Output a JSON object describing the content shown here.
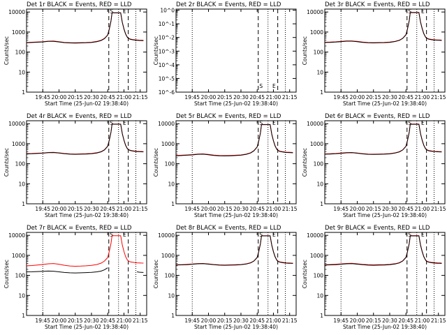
{
  "chart_data": {
    "type": "line",
    "layout": "3x3 grid of log-scale time-series panels",
    "x_tick_labels": [
      "19:45",
      "20:00",
      "20:15",
      "20:30",
      "20:45",
      "21:00",
      "21:15"
    ],
    "x_tick_minutes": [
      0,
      15,
      30,
      45,
      60,
      75,
      90
    ],
    "x_range_minutes": [
      -15,
      96
    ],
    "xlabel": "Start Time (25-Jun-02 19:38:40)",
    "ylabel": "Counts/sec",
    "legend": {
      "black": "Events",
      "red": "LLD"
    },
    "colors": {
      "events": "#000000",
      "lld": "#ff0000",
      "axes": "#000000",
      "background": "#ffffff"
    },
    "attenuator_states": [
      {
        "minute": 64,
        "label": "S"
      },
      {
        "minute": 76,
        "label": "E"
      }
    ],
    "vertical_markers": {
      "dotted_minutes": [
        0,
        70,
        86
      ],
      "dashed_minutes": [
        61,
        79
      ]
    },
    "time_minutes": [
      -15,
      -10,
      -5,
      0,
      5,
      10,
      15,
      20,
      25,
      30,
      35,
      40,
      45,
      50,
      54,
      57,
      60,
      61.5,
      63,
      64,
      72,
      73.5,
      75,
      76.5,
      78,
      79,
      81,
      83,
      85,
      87,
      89,
      91,
      93
    ],
    "panels": [
      {
        "title": "Det 1r BLACK = Events, RED = LLD",
        "y_tick_labels": [
          "1",
          "10",
          "100",
          "1000",
          "10000"
        ],
        "ylim": [
          1,
          14000
        ],
        "series": [
          {
            "name": "Events",
            "values": [
              290,
              300,
              310,
              320,
              340,
              345,
              320,
              295,
              285,
              280,
              285,
              290,
              300,
              330,
              380,
              470,
              700,
              1400,
              3500,
              9000,
              9000,
              3000,
              1400,
              800,
              560,
              480,
              430,
              410,
              395,
              385,
              380,
              375,
              370
            ]
          },
          {
            "name": "LLD",
            "values": [
              300,
              310,
              320,
              330,
              350,
              355,
              330,
              305,
              295,
              290,
              295,
              300,
              310,
              340,
              390,
              480,
              720,
              1450,
              3600,
              9200,
              9200,
              3100,
              1450,
              820,
              580,
              495,
              445,
              425,
              410,
              400,
              395,
              390,
              385
            ]
          }
        ]
      },
      {
        "title": "Det 2r BLACK = Events, RED = LLD",
        "y_tick_labels": [
          "10^-6",
          "10^-5",
          "10^-4",
          "10^-3",
          "10^-2",
          "10^-1",
          "10^0"
        ],
        "ylim": [
          1e-06,
          1.2
        ],
        "series": [
          {
            "name": "Events",
            "values": []
          },
          {
            "name": "LLD",
            "values": []
          }
        ]
      },
      {
        "title": "Det 3r BLACK = Events, RED = LLD",
        "y_tick_labels": [
          "1",
          "10",
          "100",
          "1000",
          "10000"
        ],
        "ylim": [
          1,
          14000
        ],
        "series": [
          {
            "name": "Events",
            "values": [
              300,
              305,
              315,
              330,
              350,
              350,
              330,
              305,
              290,
              285,
              290,
              295,
              305,
              335,
              385,
              480,
              720,
              1450,
              3600,
              9300,
              9300,
              3100,
              1450,
              820,
              570,
              490,
              440,
              420,
              405,
              395,
              390,
              385,
              380
            ]
          },
          {
            "name": "LLD",
            "values": [
              310,
              315,
              325,
              340,
              360,
              360,
              340,
              315,
              300,
              295,
              300,
              305,
              315,
              345,
              395,
              490,
              740,
              1500,
              3700,
              9500,
              9500,
              3200,
              1500,
              840,
              590,
              505,
              455,
              435,
              420,
              410,
              405,
              400,
              395
            ]
          }
        ]
      },
      {
        "title": "Det 4r BLACK = Events, RED = LLD",
        "y_tick_labels": [
          "1",
          "10",
          "100",
          "1000",
          "10000"
        ],
        "ylim": [
          1,
          14000
        ],
        "series": [
          {
            "name": "Events",
            "values": [
              310,
              315,
              325,
              335,
              355,
              360,
              340,
              315,
              300,
              295,
              300,
              305,
              315,
              345,
              395,
              490,
              740,
              1500,
              3700,
              9400,
              9400,
              3150,
              1480,
              830,
              580,
              500,
              450,
              430,
              415,
              405,
              400,
              395,
              390
            ]
          },
          {
            "name": "LLD",
            "values": [
              320,
              325,
              335,
              345,
              365,
              370,
              350,
              325,
              310,
              305,
              310,
              315,
              325,
              355,
              405,
              500,
              760,
              1540,
              3800,
              9600,
              9600,
              3250,
              1520,
              850,
              600,
              515,
              465,
              445,
              430,
              420,
              415,
              410,
              405
            ]
          }
        ]
      },
      {
        "title": "Det 5r BLACK = Events, RED = LLD",
        "y_tick_labels": [
          "1",
          "10",
          "100",
          "1000",
          "10000"
        ],
        "ylim": [
          1,
          14000
        ],
        "series": [
          {
            "name": "Events",
            "values": [
              250,
              255,
              265,
              275,
              295,
              300,
              280,
              260,
              250,
              245,
              250,
              255,
              265,
              295,
              345,
              440,
              680,
              1380,
              3400,
              8900,
              8900,
              2950,
              1380,
              780,
              540,
              460,
              410,
              390,
              375,
              365,
              360,
              355,
              350
            ]
          },
          {
            "name": "LLD",
            "values": [
              260,
              265,
              275,
              285,
              305,
              310,
              290,
              270,
              260,
              255,
              260,
              265,
              275,
              305,
              355,
              450,
              700,
              1420,
              3500,
              9100,
              9100,
              3050,
              1420,
              800,
              560,
              475,
              425,
              405,
              390,
              380,
              375,
              370,
              365
            ]
          }
        ]
      },
      {
        "title": "Det 6r BLACK = Events, RED = LLD",
        "y_tick_labels": [
          "1",
          "10",
          "100",
          "1000",
          "10000"
        ],
        "ylim": [
          1,
          14000
        ],
        "series": [
          {
            "name": "Events",
            "values": [
              300,
              305,
              315,
              330,
              350,
              355,
              335,
              310,
              295,
              290,
              295,
              300,
              310,
              340,
              390,
              485,
              730,
              1470,
              3650,
              9300,
              9300,
              3100,
              1460,
              825,
              575,
              495,
              445,
              425,
              410,
              400,
              395,
              390,
              385
            ]
          },
          {
            "name": "LLD",
            "values": [
              310,
              315,
              325,
              340,
              360,
              365,
              345,
              320,
              305,
              300,
              305,
              310,
              320,
              350,
              400,
              495,
              750,
              1510,
              3750,
              9500,
              9500,
              3200,
              1500,
              845,
              595,
              510,
              460,
              440,
              425,
              415,
              410,
              405,
              400
            ]
          }
        ]
      },
      {
        "title": "Det 7r BLACK = Events, RED = LLD",
        "y_tick_labels": [
          "1",
          "10",
          "100",
          "1000",
          "10000"
        ],
        "ylim": [
          1,
          14000
        ],
        "series": [
          {
            "name": "Events",
            "values": [
              150,
              152,
              155,
              160,
              165,
              162,
              150,
              140,
              135,
              132,
              135,
              138,
              142,
              150,
              165,
              190,
              240,
              null,
              null,
              null,
              null,
              null,
              null,
              null,
              null,
              null,
              null,
              null,
              null,
              150,
              145,
              142,
              140
            ]
          },
          {
            "name": "LLD",
            "values": [
              300,
              310,
              330,
              350,
              380,
              390,
              360,
              320,
              295,
              285,
              290,
              300,
              315,
              350,
              410,
              520,
              780,
              1600,
              3900,
              9600,
              9600,
              3300,
              1550,
              870,
              610,
              520,
              470,
              450,
              435,
              425,
              420,
              415,
              410
            ]
          }
        ]
      },
      {
        "title": "Det 8r BLACK = Events, RED = LLD",
        "y_tick_labels": [
          "1",
          "10",
          "100",
          "1000",
          "10000"
        ],
        "ylim": [
          1,
          14000
        ],
        "series": [
          {
            "name": "Events",
            "values": [
              330,
              335,
              345,
              360,
              380,
              385,
              365,
              340,
              325,
              320,
              325,
              330,
              340,
              370,
              420,
              520,
              780,
              1560,
              3800,
              9400,
              9400,
              3200,
              1500,
              850,
              590,
              505,
              455,
              435,
              420,
              410,
              405,
              400,
              395
            ]
          },
          {
            "name": "LLD",
            "values": [
              340,
              345,
              355,
              370,
              390,
              395,
              375,
              350,
              335,
              330,
              335,
              340,
              350,
              380,
              430,
              530,
              800,
              1600,
              3900,
              9600,
              9600,
              3300,
              1540,
              870,
              610,
              520,
              470,
              450,
              435,
              425,
              420,
              415,
              410
            ]
          }
        ]
      },
      {
        "title": "Det 9r BLACK = Events, RED = LLD",
        "y_tick_labels": [
          "1",
          "10",
          "100",
          "1000",
          "10000"
        ],
        "ylim": [
          1,
          14000
        ],
        "series": [
          {
            "name": "Events",
            "values": [
              330,
              335,
              345,
              360,
              380,
              385,
              365,
              340,
              325,
              320,
              325,
              330,
              340,
              370,
              420,
              520,
              780,
              1560,
              3800,
              9400,
              9400,
              3200,
              1500,
              850,
              590,
              505,
              455,
              435,
              420,
              410,
              405,
              400,
              395
            ]
          },
          {
            "name": "LLD",
            "values": [
              345,
              350,
              360,
              375,
              395,
              400,
              380,
              355,
              340,
              335,
              340,
              345,
              355,
              385,
              435,
              535,
              805,
              1610,
              3920,
              9650,
              9650,
              3320,
              1550,
              875,
              615,
              525,
              475,
              455,
              440,
              430,
              425,
              420,
              415
            ]
          }
        ]
      }
    ]
  }
}
